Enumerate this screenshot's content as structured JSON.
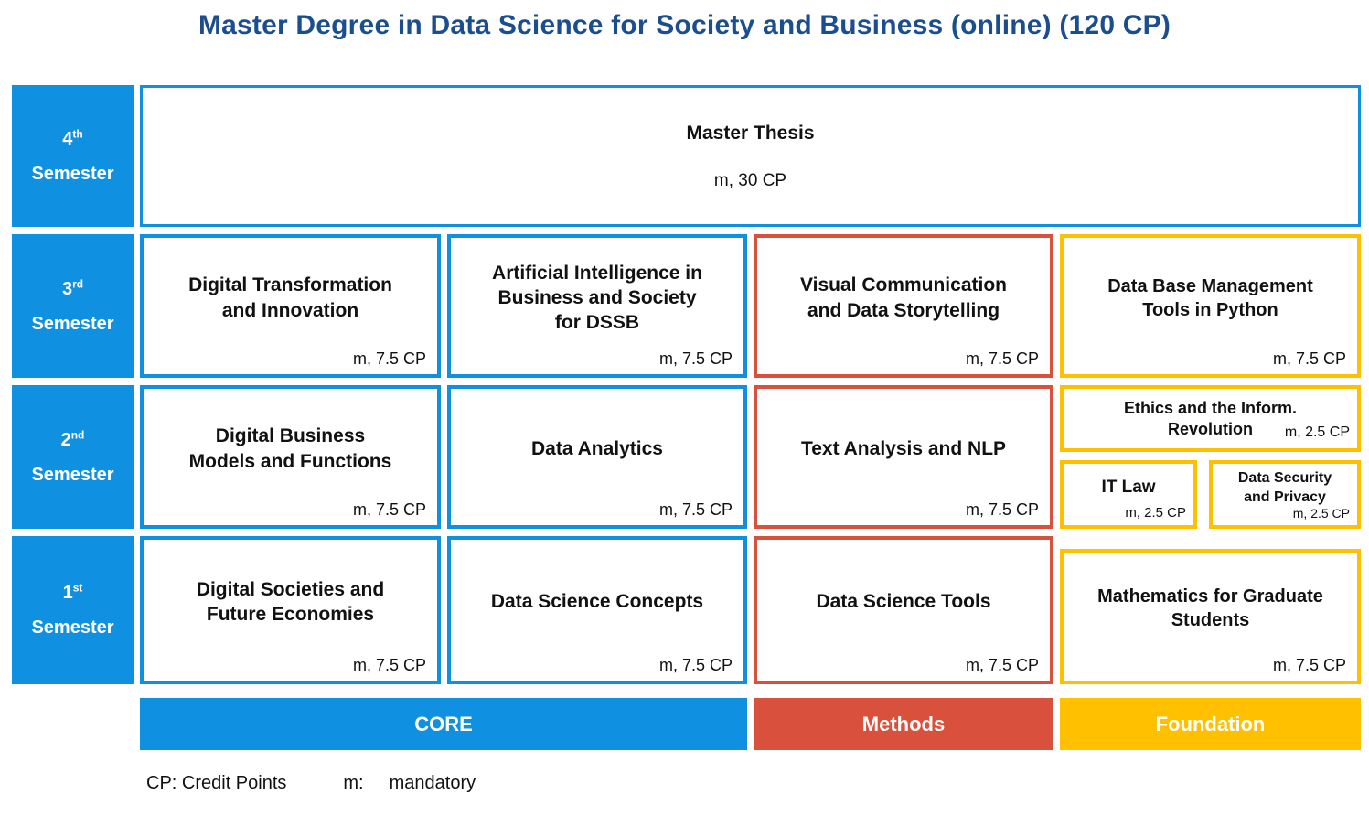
{
  "title": "Master Degree in Data Science for Society and Business (online) (120 CP)",
  "colors": {
    "core": "#0F90E0",
    "methods": "#D9503D",
    "foundation": "#FFC000",
    "heading": "#1B4E8E"
  },
  "semesters": [
    {
      "ordinal": "4",
      "suffix": "th",
      "word": "Semester"
    },
    {
      "ordinal": "3",
      "suffix": "rd",
      "word": "Semester"
    },
    {
      "ordinal": "2",
      "suffix": "nd",
      "word": "Semester"
    },
    {
      "ordinal": "1",
      "suffix": "st",
      "word": "Semester"
    }
  ],
  "courses": {
    "master_thesis": {
      "title": "Master Thesis",
      "cp": "m, 30 CP",
      "category": "core"
    },
    "digital_transformation": {
      "title": "Digital Transformation\nand Innovation",
      "cp": "m, 7.5 CP",
      "category": "core"
    },
    "ai_business_society": {
      "title": "Artificial Intelligence in\nBusiness and Society\nfor DSSB",
      "cp": "m, 7.5 CP",
      "category": "core"
    },
    "visual_communication": {
      "title": "Visual Communication\nand Data Storytelling",
      "cp": "m, 7.5 CP",
      "category": "methods"
    },
    "database_management": {
      "title": "Data Base Management\nTools in Python",
      "cp": "m, 7.5 CP",
      "category": "foundation"
    },
    "digital_business_models": {
      "title": "Digital Business\nModels and Functions",
      "cp": "m, 7.5 CP",
      "category": "core"
    },
    "data_analytics": {
      "title": "Data Analytics",
      "cp": "m, 7.5 CP",
      "category": "core"
    },
    "text_analysis_nlp": {
      "title": "Text Analysis and NLP",
      "cp": "m, 7.5 CP",
      "category": "methods"
    },
    "ethics_inform_revolution": {
      "title": "Ethics and the Inform.\nRevolution",
      "cp": "m, 2.5 CP",
      "category": "foundation"
    },
    "it_law": {
      "title": "IT Law",
      "cp": "m, 2.5 CP",
      "category": "foundation"
    },
    "data_security_privacy": {
      "title": "Data Security\nand Privacy",
      "cp": "m, 2.5 CP",
      "category": "foundation"
    },
    "digital_societies": {
      "title": "Digital Societies and\nFuture Economies",
      "cp": "m, 7.5 CP",
      "category": "core"
    },
    "data_science_concepts": {
      "title": "Data Science Concepts",
      "cp": "m, 7.5 CP",
      "category": "core"
    },
    "data_science_tools": {
      "title": "Data Science Tools",
      "cp": "m, 7.5 CP",
      "category": "methods"
    },
    "mathematics_graduate": {
      "title": "Mathematics for Graduate\nStudents",
      "cp": "m, 7.5 CP",
      "category": "foundation"
    }
  },
  "legend": {
    "core": "CORE",
    "methods": "Methods",
    "foundation": "Foundation"
  },
  "footer": {
    "cp_label": "CP: Credit Points",
    "m_label": "m:",
    "m_value": "mandatory"
  }
}
